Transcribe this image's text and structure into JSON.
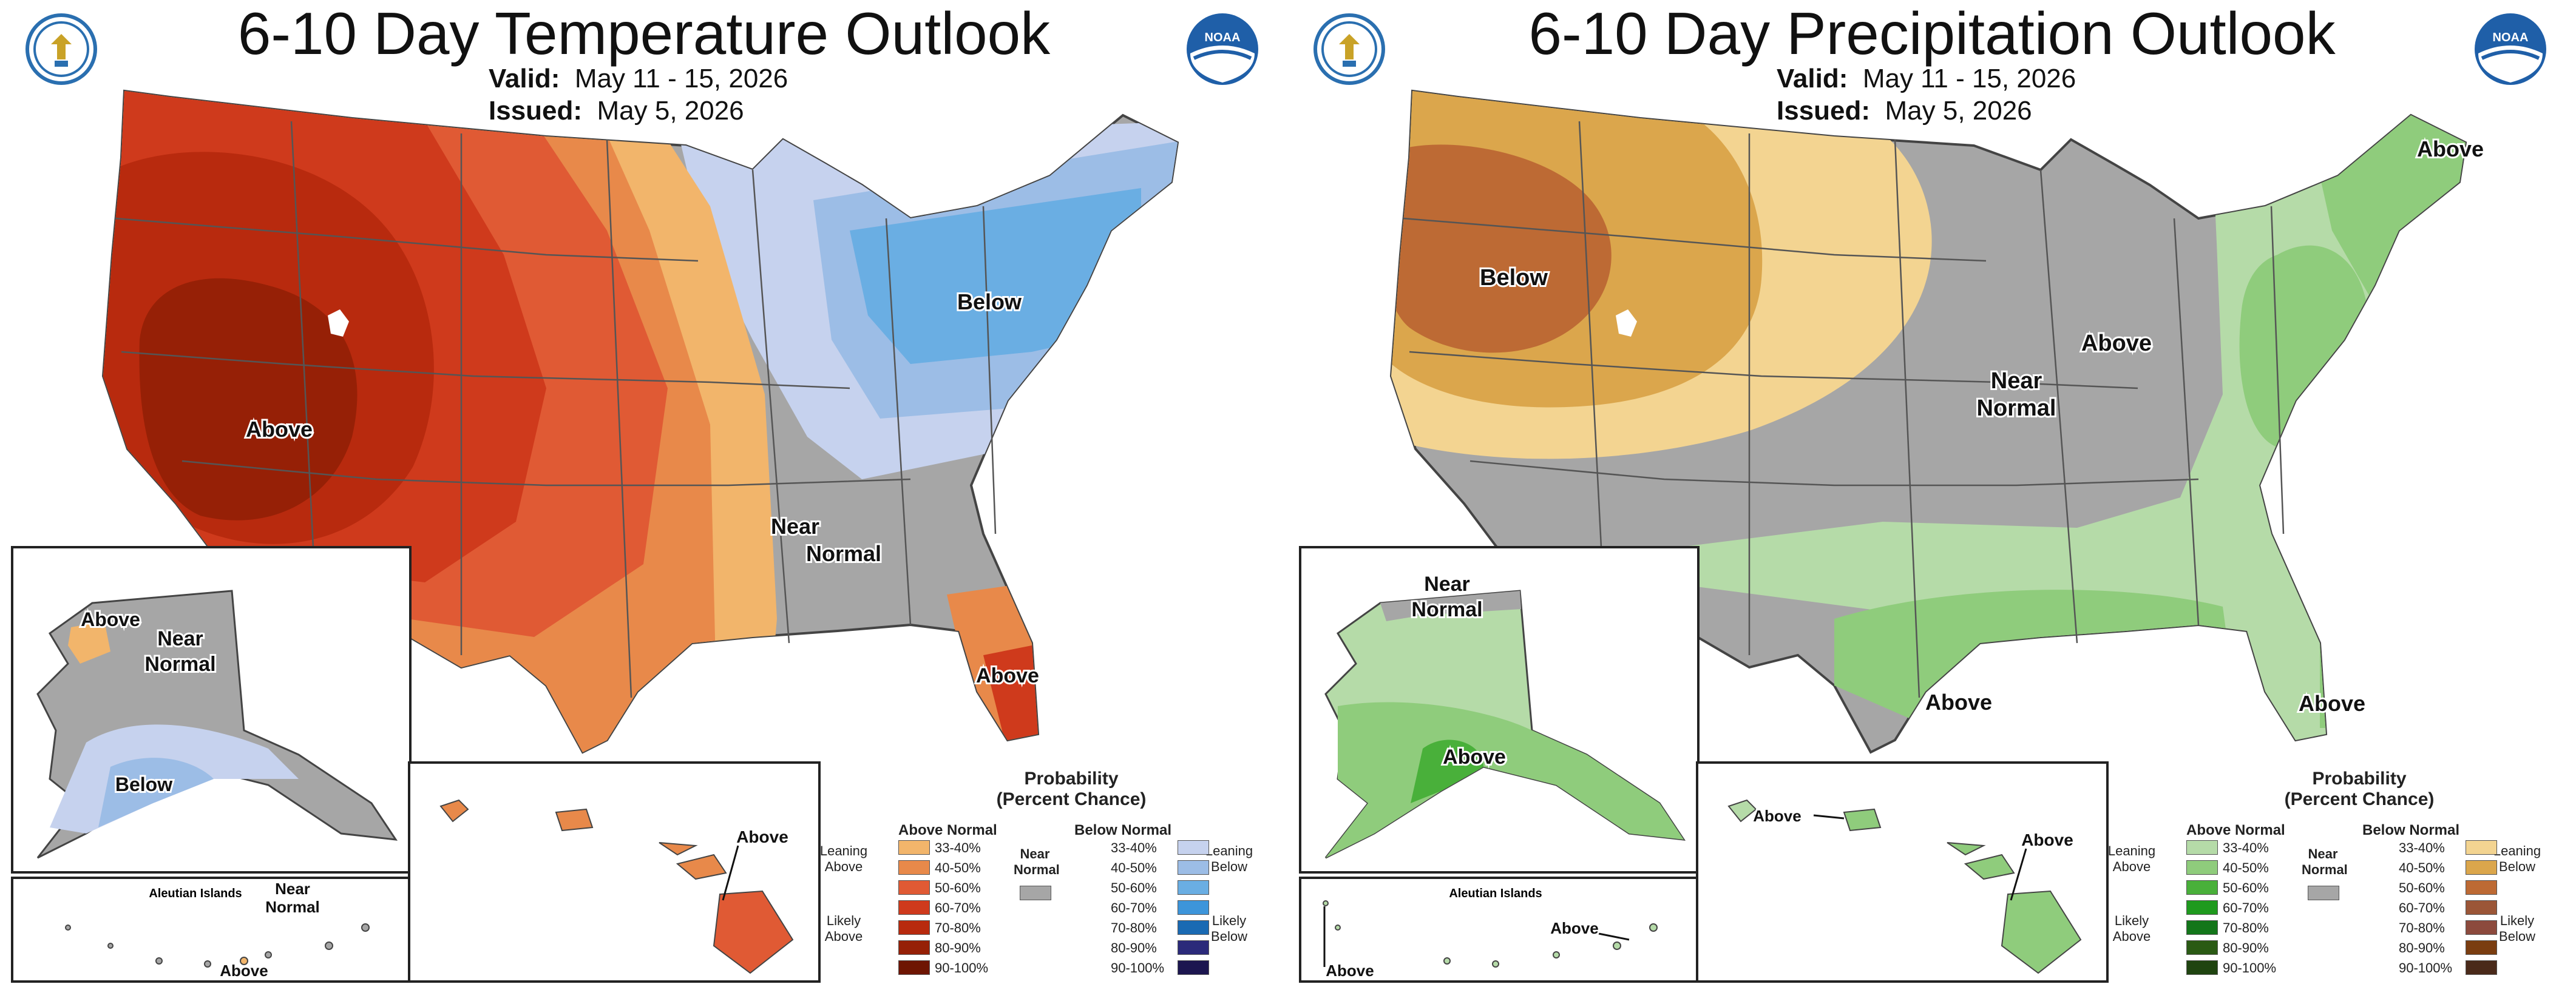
{
  "temperature": {
    "title": "6-10 Day Temperature Outlook",
    "valid_label": "Valid:",
    "valid_value": "May 11 - 15, 2026",
    "issued_label": "Issued:",
    "issued_value": "May 5, 2026",
    "map_labels": {
      "above_west": "Above",
      "below_northeast": "Below",
      "near_normal_southeast": "Near Normal",
      "above_florida": "Above",
      "alaska_above": "Above",
      "alaska_near_normal": "Near Normal",
      "alaska_below": "Below",
      "aleutian_title": "Aleutian Islands",
      "aleutian_near_normal": "Near Normal",
      "aleutian_above": "Above",
      "hawaii_above": "Above"
    },
    "legend": {
      "title": "Probability (Percent Chance)",
      "left_header": "Above Normal",
      "right_header": "Below Normal",
      "middle_label": "Near Normal",
      "leaning_left": "Leaning Above",
      "likely_left": "Likely Above",
      "leaning_right": "Leaning Below",
      "likely_right": "Likely Below",
      "ranges": [
        "33-40%",
        "40-50%",
        "50-60%",
        "60-70%",
        "70-80%",
        "80-90%",
        "90-100%"
      ],
      "left_colors": [
        "#f2b56b",
        "#e8894a",
        "#e05a34",
        "#cf3a1c",
        "#b82a0e",
        "#962006",
        "#6e1502"
      ],
      "right_colors": [
        "#c6d2ee",
        "#9cbde6",
        "#6aaee3",
        "#3d95da",
        "#1a6ab3",
        "#2b2a7a",
        "#1c1650"
      ],
      "near_normal_color": "#a6a6a6"
    }
  },
  "precipitation": {
    "title": "6-10 Day Precipitation Outlook",
    "valid_label": "Valid:",
    "valid_value": "May 11 - 15, 2026",
    "issued_label": "Issued:",
    "issued_value": "May 5, 2026",
    "map_labels": {
      "below_northwest": "Below",
      "near_normal_central": "Near Normal",
      "above_midwest": "Above",
      "above_northeast": "Above",
      "above_texas": "Above",
      "above_southeast": "Above",
      "alaska_near_normal": "Near Normal",
      "alaska_above": "Above",
      "aleutian_title": "Aleutian Islands",
      "aleutian_above_east": "Above",
      "aleutian_above_west": "Above",
      "hawaii_above_west": "Above",
      "hawaii_above_east": "Above"
    },
    "legend": {
      "title": "Probability (Percent Chance)",
      "left_header": "Above Normal",
      "right_header": "Below Normal",
      "middle_label": "Near Normal",
      "leaning_left": "Leaning Above",
      "likely_left": "Likely Above",
      "leaning_right": "Leaning Below",
      "likely_right": "Likely Below",
      "ranges": [
        "33-40%",
        "40-50%",
        "50-60%",
        "60-70%",
        "70-80%",
        "80-90%",
        "90-100%"
      ],
      "left_colors": [
        "#b5dba8",
        "#8fcc7c",
        "#49b03a",
        "#1f9a1e",
        "#13761a",
        "#2a5a14",
        "#1f4410"
      ],
      "right_colors": [
        "#f3d491",
        "#dba64c",
        "#bd6a34",
        "#9b5637",
        "#8c4a3d",
        "#7a3d10",
        "#4a2a1a"
      ],
      "near_normal_color": "#a6a6a6"
    }
  },
  "logos": {
    "left_logo": "department-of-commerce-seal-icon",
    "right_logo": "noaa-logo-icon"
  }
}
